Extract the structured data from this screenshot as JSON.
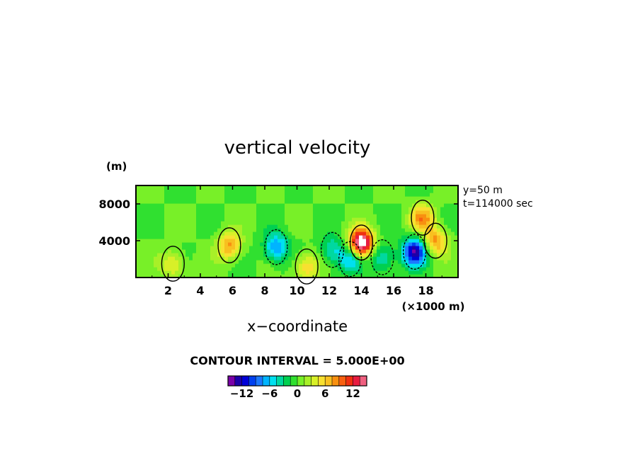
{
  "chart_data": {
    "type": "heatmap",
    "title": "vertical velocity",
    "xlabel": "x−coordinate",
    "ylabel": "(m)",
    "x_unit_label": "(×1000 m)",
    "info_lines": [
      "y=50 m",
      "t=114000 sec"
    ],
    "contour_interval_label": "CONTOUR INTERVAL = 5.000E+00",
    "xlim": [
      0,
      20
    ],
    "ylim": [
      0,
      10000
    ],
    "x_ticks": [
      2,
      4,
      6,
      8,
      10,
      12,
      14,
      16,
      18
    ],
    "x_tick_labels": [
      "2",
      "4",
      "6",
      "8",
      "10",
      "12",
      "14",
      "16",
      "18"
    ],
    "y_ticks": [
      4000,
      8000
    ],
    "y_tick_labels": [
      "4000",
      "8000"
    ],
    "colorbar": {
      "levels": [
        -15,
        -13.5,
        -12,
        -10.5,
        -9,
        -7.5,
        -6,
        -4.5,
        -3,
        -1.5,
        0,
        1.5,
        3,
        4.5,
        6,
        7.5,
        9,
        10.5,
        12,
        13.5,
        15
      ],
      "colors": [
        "#7a00a8",
        "#1c00a8",
        "#0000d8",
        "#0040f0",
        "#1c78ff",
        "#00b4ff",
        "#00e0f0",
        "#00d8a0",
        "#00d050",
        "#30e030",
        "#78f028",
        "#a8f028",
        "#d8f028",
        "#f8e030",
        "#f8c020",
        "#f89010",
        "#f86010",
        "#f03010",
        "#e81c40",
        "#f06080"
      ],
      "tick_values": [
        -12,
        -6,
        0,
        6,
        12
      ],
      "tick_labels": [
        "−12",
        "−6",
        "0",
        "6",
        "12"
      ]
    },
    "features": [
      {
        "x": 2.3,
        "z": 1500,
        "w": 5
      },
      {
        "x": 5.8,
        "z": 3500,
        "w": 8
      },
      {
        "x": 8.7,
        "z": 3300,
        "w": -8
      },
      {
        "x": 10.6,
        "z": 1200,
        "w": 6
      },
      {
        "x": 12.2,
        "z": 3000,
        "w": -5
      },
      {
        "x": 13.3,
        "z": 2000,
        "w": -6
      },
      {
        "x": 14.0,
        "z": 3800,
        "w": 18
      },
      {
        "x": 15.3,
        "z": 2200,
        "w": -5
      },
      {
        "x": 17.3,
        "z": 2800,
        "w": -13
      },
      {
        "x": 17.8,
        "z": 6500,
        "w": 8
      },
      {
        "x": 18.6,
        "z": 4000,
        "w": 8
      }
    ]
  }
}
